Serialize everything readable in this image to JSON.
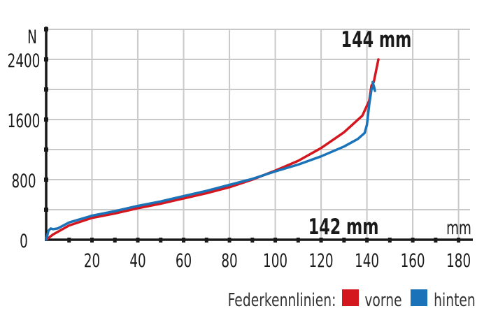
{
  "chart_data": {
    "type": "line",
    "xlabel": "mm",
    "ylabel": "N",
    "xlim": [
      0,
      185
    ],
    "ylim": [
      0,
      2800
    ],
    "x_ticks": [
      20,
      40,
      60,
      80,
      100,
      120,
      140,
      160,
      180
    ],
    "y_ticks": [
      0,
      800,
      1600,
      2400
    ],
    "grid": true,
    "series": [
      {
        "name": "vorne",
        "color": "#d4161e",
        "points": [
          [
            0,
            0
          ],
          [
            3,
            70
          ],
          [
            10,
            190
          ],
          [
            20,
            290
          ],
          [
            30,
            350
          ],
          [
            40,
            420
          ],
          [
            50,
            480
          ],
          [
            60,
            550
          ],
          [
            70,
            620
          ],
          [
            80,
            700
          ],
          [
            90,
            800
          ],
          [
            100,
            920
          ],
          [
            110,
            1050
          ],
          [
            120,
            1220
          ],
          [
            130,
            1430
          ],
          [
            138,
            1650
          ],
          [
            141,
            1850
          ],
          [
            142,
            2050
          ],
          [
            143,
            2100
          ],
          [
            144,
            2250
          ],
          [
            145,
            2400
          ]
        ]
      },
      {
        "name": "hinten",
        "color": "#1a73b8",
        "points": [
          [
            0,
            0
          ],
          [
            1,
            120
          ],
          [
            2,
            150
          ],
          [
            3,
            140
          ],
          [
            5,
            150
          ],
          [
            10,
            230
          ],
          [
            20,
            320
          ],
          [
            30,
            380
          ],
          [
            40,
            450
          ],
          [
            50,
            510
          ],
          [
            60,
            580
          ],
          [
            70,
            650
          ],
          [
            80,
            730
          ],
          [
            90,
            810
          ],
          [
            100,
            910
          ],
          [
            110,
            1000
          ],
          [
            120,
            1110
          ],
          [
            130,
            1240
          ],
          [
            136,
            1340
          ],
          [
            139,
            1420
          ],
          [
            140,
            1530
          ],
          [
            141,
            1800
          ],
          [
            142,
            2000
          ],
          [
            143,
            2050
          ],
          [
            143.5,
            1980
          ],
          [
            142.5,
            2100
          ]
        ]
      }
    ],
    "annotations": [
      {
        "text": "144 mm",
        "x": 145,
        "y": 2400
      },
      {
        "text": "142 mm",
        "x": 142,
        "y": 1450
      }
    ],
    "legend": {
      "title": "Federkennlinien:",
      "placement": "bottom-right"
    }
  }
}
